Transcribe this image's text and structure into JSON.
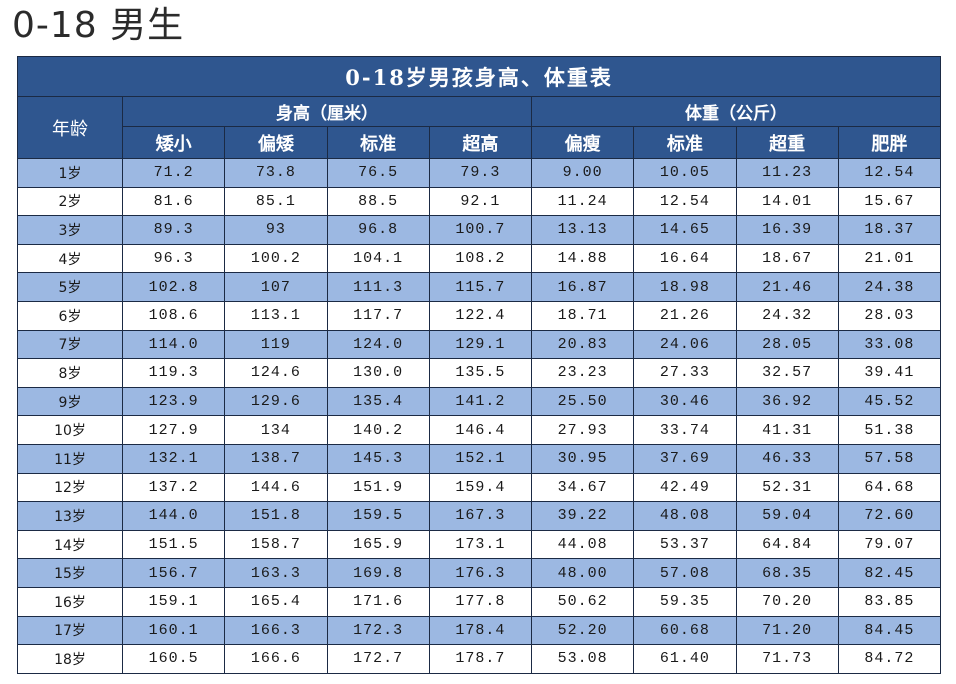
{
  "page": {
    "heading": "0-18 男生"
  },
  "table": {
    "title": "0-18岁男孩身高、体重表",
    "age_header": "年龄",
    "groups": [
      {
        "label": "身高（厘米）",
        "span": 4
      },
      {
        "label": "体重（公斤）",
        "span": 4
      }
    ],
    "subheaders": [
      "矮小",
      "偏矮",
      "标准",
      "超高",
      "偏瘦",
      "标准",
      "超重",
      "肥胖"
    ],
    "colors": {
      "header_bg": "#2f568f",
      "header_text": "#ffffff",
      "stripe_bg": "#9cb8e2",
      "plain_bg": "#ffffff",
      "border": "#1b2a44"
    },
    "rows": [
      {
        "age": "1岁",
        "values": [
          "71.2",
          "73.8",
          "76.5",
          "79.3",
          "9.00",
          "10.05",
          "11.23",
          "12.54"
        ]
      },
      {
        "age": "2岁",
        "values": [
          "81.6",
          "85.1",
          "88.5",
          "92.1",
          "11.24",
          "12.54",
          "14.01",
          "15.67"
        ]
      },
      {
        "age": "3岁",
        "values": [
          "89.3",
          "93",
          "96.8",
          "100.7",
          "13.13",
          "14.65",
          "16.39",
          "18.37"
        ]
      },
      {
        "age": "4岁",
        "values": [
          "96.3",
          "100.2",
          "104.1",
          "108.2",
          "14.88",
          "16.64",
          "18.67",
          "21.01"
        ]
      },
      {
        "age": "5岁",
        "values": [
          "102.8",
          "107",
          "111.3",
          "115.7",
          "16.87",
          "18.98",
          "21.46",
          "24.38"
        ]
      },
      {
        "age": "6岁",
        "values": [
          "108.6",
          "113.1",
          "117.7",
          "122.4",
          "18.71",
          "21.26",
          "24.32",
          "28.03"
        ]
      },
      {
        "age": "7岁",
        "values": [
          "114.0",
          "119",
          "124.0",
          "129.1",
          "20.83",
          "24.06",
          "28.05",
          "33.08"
        ]
      },
      {
        "age": "8岁",
        "values": [
          "119.3",
          "124.6",
          "130.0",
          "135.5",
          "23.23",
          "27.33",
          "32.57",
          "39.41"
        ]
      },
      {
        "age": "9岁",
        "values": [
          "123.9",
          "129.6",
          "135.4",
          "141.2",
          "25.50",
          "30.46",
          "36.92",
          "45.52"
        ]
      },
      {
        "age": "10岁",
        "values": [
          "127.9",
          "134",
          "140.2",
          "146.4",
          "27.93",
          "33.74",
          "41.31",
          "51.38"
        ]
      },
      {
        "age": "11岁",
        "values": [
          "132.1",
          "138.7",
          "145.3",
          "152.1",
          "30.95",
          "37.69",
          "46.33",
          "57.58"
        ]
      },
      {
        "age": "12岁",
        "values": [
          "137.2",
          "144.6",
          "151.9",
          "159.4",
          "34.67",
          "42.49",
          "52.31",
          "64.68"
        ]
      },
      {
        "age": "13岁",
        "values": [
          "144.0",
          "151.8",
          "159.5",
          "167.3",
          "39.22",
          "48.08",
          "59.04",
          "72.60"
        ]
      },
      {
        "age": "14岁",
        "values": [
          "151.5",
          "158.7",
          "165.9",
          "173.1",
          "44.08",
          "53.37",
          "64.84",
          "79.07"
        ]
      },
      {
        "age": "15岁",
        "values": [
          "156.7",
          "163.3",
          "169.8",
          "176.3",
          "48.00",
          "57.08",
          "68.35",
          "82.45"
        ]
      },
      {
        "age": "16岁",
        "values": [
          "159.1",
          "165.4",
          "171.6",
          "177.8",
          "50.62",
          "59.35",
          "70.20",
          "83.85"
        ]
      },
      {
        "age": "17岁",
        "values": [
          "160.1",
          "166.3",
          "172.3",
          "178.4",
          "52.20",
          "60.68",
          "71.20",
          "84.45"
        ]
      },
      {
        "age": "18岁",
        "values": [
          "160.5",
          "166.6",
          "172.7",
          "178.7",
          "53.08",
          "61.40",
          "71.73",
          "84.72"
        ]
      }
    ]
  }
}
